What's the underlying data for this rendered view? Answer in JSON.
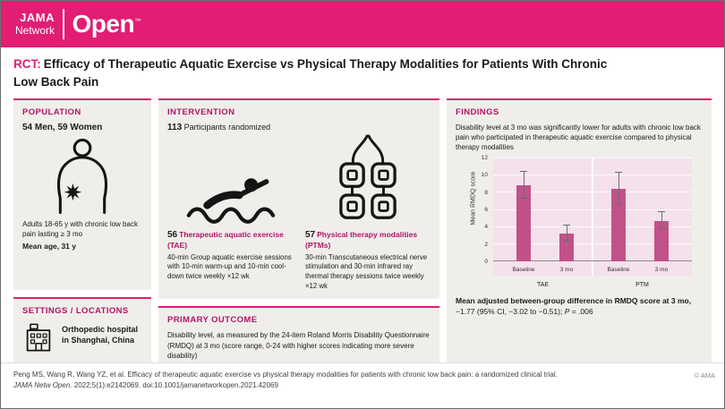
{
  "header": {
    "brand_jama": "JAMA",
    "brand_network": "Network",
    "brand_open": "Open",
    "brand_tm": "™"
  },
  "title": {
    "tag": "RCT:",
    "text": "Efficacy of Therapeutic Aquatic Exercise vs Physical Therapy Modalities for Patients With Chronic Low Back Pain"
  },
  "population": {
    "header": "POPULATION",
    "stat": "54 Men, 59 Women",
    "desc": "Adults 18-65 y with chronic low back pain lasting ≥ 3 mo",
    "mean_age": "Mean age, 31 y"
  },
  "settings": {
    "header": "SETTINGS / LOCATIONS",
    "text": "Orthopedic hospital in Shanghai, China"
  },
  "intervention": {
    "header": "INTERVENTION",
    "randomized_count": "113",
    "randomized_label": " Participants randomized",
    "arms": [
      {
        "count": "56",
        "label": "Therapeutic aquatic exercise (TAE)",
        "desc": "40-min Group aquatic exercise sessions with 10-min warm-up and 10-min cool-down twice weekly ×12 wk"
      },
      {
        "count": "57",
        "label": "Physical therapy modalities (PTMs)",
        "desc": "30-min Transcutaneous electrical nerve stimulation and 30-min infrared ray thermal therapy sessions twice weekly ×12 wk"
      }
    ]
  },
  "primary_outcome": {
    "header": "PRIMARY OUTCOME",
    "text": "Disability level, as measured by the 24-item Roland Morris Disability Questionnaire (RMDQ) at 3 mo (score range, 0-24 with higher scores indicating more severe disability)"
  },
  "findings": {
    "header": "FINDINGS",
    "text": "Disability level at 3 mo was significantly lower for adults with chronic low back pain who participated in therapeutic aquatic exercise compared to physical therapy modalities",
    "result_bold": "Mean adjusted between-group difference in RMDQ score at 3 mo,",
    "result_value_pre": "−1.77 (95% CI, −3.02 to −0.51); ",
    "result_p": "P",
    "result_p_rest": " = .006"
  },
  "chart_data": {
    "type": "bar",
    "title": "",
    "ylabel": "Mean RMDQ score",
    "xlabel": "",
    "ylim": [
      0,
      12
    ],
    "yticks": [
      0,
      2,
      4,
      6,
      8,
      10,
      12
    ],
    "groups": [
      "TAE",
      "PTM"
    ],
    "categories": [
      "Baseline",
      "3 mo",
      "Baseline",
      "3 mo"
    ],
    "values": [
      8.8,
      3.2,
      8.4,
      4.7
    ],
    "errors": [
      1.6,
      0.9,
      1.8,
      1.0
    ],
    "bar_color": "#C05289",
    "bg_color": "#F4E1EB",
    "grid": true,
    "legend_position": "none"
  },
  "footer": {
    "citation_line1": "Peng MS, Wang R, Wang YZ, et al. Efficacy of therapeutic aquatic exercise vs physical therapy modalities for patients with chronic low back pain: a randomized clinical trial.",
    "citation_journal": "JAMA Netw Open.",
    "citation_rest": " 2022;5(1):e2142069. doi:10.1001/jamanetworkopen.2021.42069",
    "copyright": "© AMA"
  },
  "colors": {
    "brand": "#E11D74",
    "section_header": "#B01568",
    "panel_bg": "#F0EEEA",
    "bar": "#C05289",
    "chart_bg": "#F4E1EB"
  }
}
